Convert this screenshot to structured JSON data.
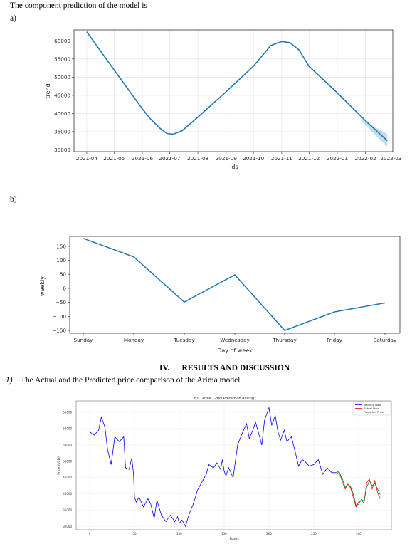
{
  "intro_text": "The component prediction of the model is",
  "label_a": "a)",
  "label_b": "b)",
  "section_number": "IV.",
  "section_title": "RESULTS AND DISCUSSION",
  "subsection_number": "1)",
  "subsection_title": "The Actual and the Predicted price comparison of  the Arima model",
  "colors": {
    "trend_line": "#1f77b4",
    "training": "#0000ff",
    "actual": "#ff0000",
    "predicted": "#008000"
  },
  "chart_data": [
    {
      "type": "line",
      "xlabel": "ds",
      "ylabel": "trend",
      "x_tick_labels": [
        "2021-04",
        "2021-05",
        "2021-06",
        "2021-07",
        "2021-08",
        "2021-09",
        "2021-10",
        "2021-11",
        "2021-12",
        "2022-01",
        "2022-02",
        "2022-03"
      ],
      "y_tick_labels": [
        "30000",
        "35000",
        "40000",
        "45000",
        "50000",
        "55000",
        "60000"
      ],
      "ylim": [
        29500,
        63000
      ],
      "grid": true,
      "x": [
        "2021-04-01",
        "2021-05-01",
        "2021-06-01",
        "2021-06-10",
        "2021-06-20",
        "2021-06-28",
        "2021-07-05",
        "2021-07-15",
        "2021-08-01",
        "2021-09-01",
        "2021-10-01",
        "2021-10-20",
        "2021-11-01",
        "2021-11-10",
        "2021-11-20",
        "2021-12-01",
        "2022-01-01",
        "2022-02-01",
        "2022-02-25"
      ],
      "values": [
        62500,
        52000,
        41300,
        38500,
        36000,
        34500,
        34300,
        35300,
        39000,
        46000,
        53000,
        58700,
        59800,
        59500,
        57500,
        53000,
        45700,
        38000,
        32500
      ],
      "uncertainty": {
        "x": [
          "2022-01-28",
          "2022-02-10",
          "2022-02-25"
        ],
        "lower": [
          38000,
          34500,
          30800
        ],
        "upper": [
          38600,
          36500,
          34300
        ]
      }
    },
    {
      "type": "line",
      "xlabel": "Day of week",
      "ylabel": "weekly",
      "categories": [
        "Sunday",
        "Monday",
        "Tuesday",
        "Wednesday",
        "Thursday",
        "Friday",
        "Saturday"
      ],
      "values": [
        178,
        112,
        -49,
        48,
        -150,
        -84,
        -52
      ],
      "y_tick_labels": [
        "−150",
        "−100",
        "−50",
        "0",
        "50",
        "100",
        "150"
      ],
      "ylim": [
        -160,
        185
      ],
      "grid": false
    },
    {
      "type": "line",
      "title": "BTC Price 1-day Prediction Rolling",
      "xlabel": "Dates",
      "ylabel": "Price (USD)",
      "x_tick_labels": [
        "0",
        "50",
        "100",
        "150",
        "200",
        "250",
        "300"
      ],
      "y_tick_labels": [
        "30000",
        "35000",
        "40000",
        "45000",
        "50000",
        "55000",
        "60000",
        "65000"
      ],
      "ylim": [
        29000,
        68500
      ],
      "grid": true,
      "legend": [
        "Training Data",
        "Actual Price",
        "Predicted Price"
      ],
      "legend_position": "top-right",
      "series": [
        {
          "name": "Training Data",
          "x": [
            0,
            5,
            10,
            13,
            17,
            20,
            24,
            28,
            33,
            38,
            40,
            44,
            47,
            49,
            50,
            52,
            55,
            60,
            65,
            68,
            72,
            75,
            80,
            85,
            90,
            95,
            98,
            100,
            103,
            107,
            110,
            112,
            115,
            118,
            120,
            124,
            127,
            130,
            133,
            138,
            142,
            146,
            148,
            150,
            152,
            155,
            160,
            165,
            170,
            175,
            178,
            182,
            185,
            188,
            192,
            195,
            200,
            203,
            207,
            210,
            213,
            217,
            220,
            225,
            230,
            233,
            237,
            240,
            245,
            250,
            255,
            260,
            265,
            270,
            275
          ],
          "values": [
            59000,
            58000,
            59500,
            63500,
            60500,
            53500,
            49000,
            57500,
            56000,
            57500,
            48000,
            47500,
            51000,
            46000,
            39000,
            37500,
            39000,
            36000,
            38500,
            37000,
            32500,
            38000,
            33500,
            31500,
            33500,
            31500,
            33000,
            31000,
            32000,
            30000,
            33000,
            34500,
            36500,
            39000,
            41000,
            43000,
            44500,
            46000,
            49000,
            48000,
            49500,
            47500,
            50500,
            47000,
            45500,
            48000,
            45000,
            55000,
            58500,
            61500,
            57000,
            59500,
            62000,
            59000,
            55000,
            62500,
            66500,
            61000,
            64000,
            59000,
            56500,
            59500,
            56000,
            57500,
            52000,
            48500,
            50500,
            50000,
            48500,
            49000,
            50500,
            46000,
            48000,
            46500,
            46500
          ]
        },
        {
          "name": "Actual Price",
          "x": [
            275,
            278,
            282,
            285,
            288,
            291,
            294,
            297,
            300,
            303,
            306,
            309,
            312,
            315,
            318,
            321,
            324
          ],
          "values": [
            46500,
            47000,
            43500,
            41500,
            43000,
            41800,
            39000,
            36000,
            37500,
            38000,
            37200,
            43500,
            44500,
            41500,
            44000,
            40500,
            38500
          ]
        },
        {
          "name": "Predicted Price",
          "x": [
            275,
            278,
            282,
            285,
            288,
            291,
            294,
            297,
            300,
            303,
            306,
            309,
            312,
            315,
            318,
            321,
            324
          ],
          "values": [
            46000,
            46700,
            44500,
            42000,
            42500,
            42200,
            40000,
            36500,
            36800,
            38300,
            37800,
            42000,
            44000,
            42500,
            43200,
            41500,
            39800
          ]
        }
      ]
    }
  ]
}
